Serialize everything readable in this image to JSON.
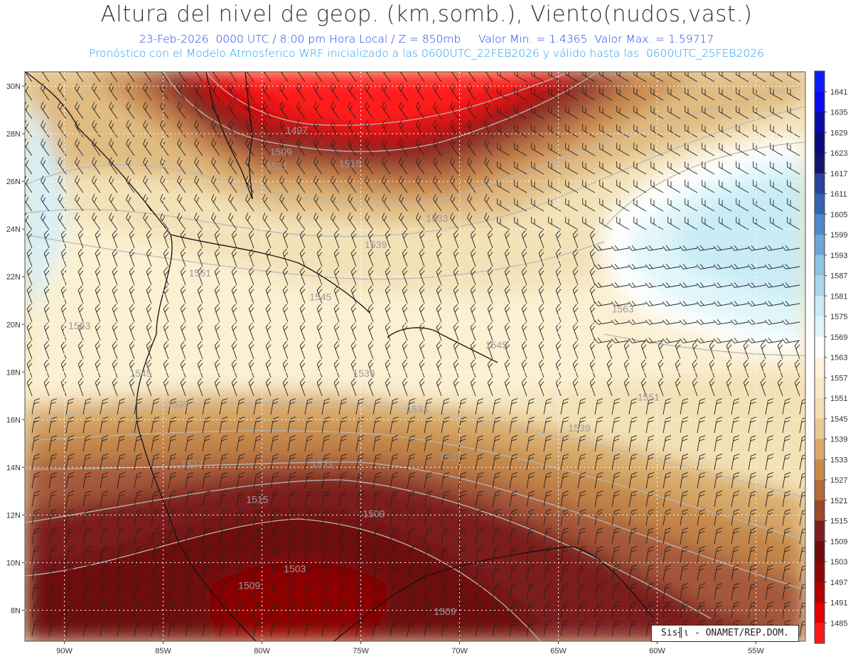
{
  "header": {
    "title": "Altura del nivel de geop. (km,somb.), Viento(nudos,vast.)",
    "subtitle": "23-Feb-2026  0000 UTC / 8:00 pm Hora Local / Z = 850mb     Valor Min. = 1.4365  Valor Max. = 1.59717",
    "forecast_note": "Pronóstico con el Modelo Atmosferico WRF inicializado a las 0600UTC_22FEB2026 y válido hasta las  0600UTC_25FEB2026"
  },
  "map": {
    "lat_labels": [
      "30N",
      "28N",
      "26N",
      "24N",
      "22N",
      "20N",
      "18N",
      "16N",
      "14N",
      "12N",
      "10N",
      "8N"
    ],
    "lat_values": [
      30,
      28,
      26,
      24,
      22,
      20,
      18,
      16,
      14,
      12,
      10,
      8
    ],
    "lon_labels": [
      "90W",
      "85W",
      "80W",
      "75W",
      "70W",
      "65W",
      "60W",
      "55W"
    ],
    "lon_values": [
      -90,
      -85,
      -80,
      -75,
      -70,
      -65,
      -60,
      -55
    ],
    "extent": {
      "lon_min": -92,
      "lon_max": -52.5,
      "lat_min": 6.7,
      "lat_max": 30.6
    },
    "contour_labels": [
      {
        "text": "1497",
        "lon": -78.8,
        "lat": 28.0
      },
      {
        "text": "1509",
        "lon": -79.6,
        "lat": 27.1
      },
      {
        "text": "1515",
        "lon": -76.1,
        "lat": 26.6
      },
      {
        "text": "1521",
        "lon": -79.8,
        "lat": 26.5
      },
      {
        "text": "1533",
        "lon": -71.7,
        "lat": 24.3
      },
      {
        "text": "1539",
        "lon": -74.8,
        "lat": 23.2
      },
      {
        "text": "1551",
        "lon": -83.7,
        "lat": 22.0
      },
      {
        "text": "1545",
        "lon": -77.6,
        "lat": 21.0
      },
      {
        "text": "1563",
        "lon": -89.8,
        "lat": 19.8
      },
      {
        "text": "1563",
        "lon": -62.3,
        "lat": 20.5
      },
      {
        "text": "1545",
        "lon": -68.7,
        "lat": 19.0
      },
      {
        "text": "1545",
        "lon": -86.7,
        "lat": 17.8
      },
      {
        "text": "1539",
        "lon": -75.4,
        "lat": 17.8
      },
      {
        "text": "1539",
        "lon": -84.8,
        "lat": 16.5
      },
      {
        "text": "1533",
        "lon": -72.7,
        "lat": 16.3
      },
      {
        "text": "1551",
        "lon": -61.0,
        "lat": 16.8
      },
      {
        "text": "1539",
        "lon": -64.5,
        "lat": 15.5
      },
      {
        "text": "1527",
        "lon": -71.0,
        "lat": 14.3
      },
      {
        "text": "1521",
        "lon": -77.5,
        "lat": 14.0
      },
      {
        "text": "1527",
        "lon": -84.1,
        "lat": 14.0
      },
      {
        "text": "1515",
        "lon": -80.8,
        "lat": 12.5
      },
      {
        "text": "1509",
        "lon": -74.9,
        "lat": 11.9
      },
      {
        "text": "1503",
        "lon": -78.9,
        "lat": 9.6
      },
      {
        "text": "1509",
        "lon": -81.2,
        "lat": 8.9
      },
      {
        "text": "1509",
        "lon": -71.3,
        "lat": 7.8
      }
    ]
  },
  "colorbar": {
    "labels": [
      "1641",
      "1635",
      "1629",
      "1623",
      "1617",
      "1611",
      "1605",
      "1599",
      "1593",
      "1587",
      "1581",
      "1575",
      "1569",
      "1563",
      "1557",
      "1551",
      "1545",
      "1539",
      "1533",
      "1527",
      "1521",
      "1515",
      "1509",
      "1503",
      "1497",
      "1491",
      "1485"
    ],
    "colors": [
      "#0a1cff",
      "#0a0af0",
      "#0a0aa8",
      "#0b0b7a",
      "#141470",
      "#26439d",
      "#3563b0",
      "#4f88c6",
      "#6ea5d4",
      "#8cc4e3",
      "#aad7ec",
      "#c8ebf6",
      "#dff6fb",
      "#ffffff",
      "#fdf3da",
      "#f9ebc7",
      "#f2deb0",
      "#e8ca94",
      "#d8aa6a",
      "#c88b4b",
      "#b36b3c",
      "#9a4a2e",
      "#7d1f1f",
      "#6e0c0c",
      "#8c0606",
      "#b30000",
      "#e30000",
      "#ff1a1a"
    ]
  },
  "credit": "Sis╢ι - ONAMET/REP.DOM."
}
